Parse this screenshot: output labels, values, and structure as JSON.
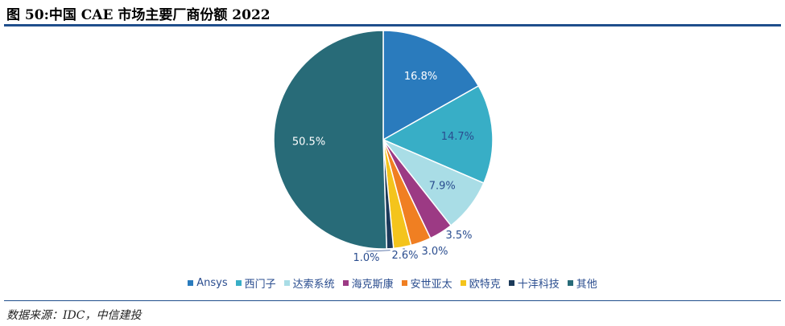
{
  "title": "图 50:中国 CAE 市场主要厂商份额 2022",
  "source": "数据来源：IDC，中信建投",
  "chart_data": {
    "type": "pie",
    "title": "",
    "legend_position": "bottom",
    "start": "12 o'clock, clockwise",
    "slices": [
      {
        "name": "Ansys",
        "value": 16.8,
        "label": "16.8%",
        "color": "#2a7bbd"
      },
      {
        "name": "西门子",
        "value": 14.7,
        "label": "14.7%",
        "color": "#38aec6"
      },
      {
        "name": "达索系统",
        "value": 7.9,
        "label": "7.9%",
        "color": "#a9dde6"
      },
      {
        "name": "海克斯康",
        "value": 3.5,
        "label": "3.5%",
        "color": "#9c3a84"
      },
      {
        "name": "安世亚太",
        "value": 3.0,
        "label": "3.0%",
        "color": "#f07f22"
      },
      {
        "name": "欧特克",
        "value": 2.6,
        "label": "2.6%",
        "color": "#f4c41c"
      },
      {
        "name": "十沣科技",
        "value": 1.0,
        "label": "1.0%",
        "color": "#1c3a5a"
      },
      {
        "name": "其他",
        "value": 50.5,
        "label": "50.5%",
        "color": "#286b78"
      }
    ]
  }
}
